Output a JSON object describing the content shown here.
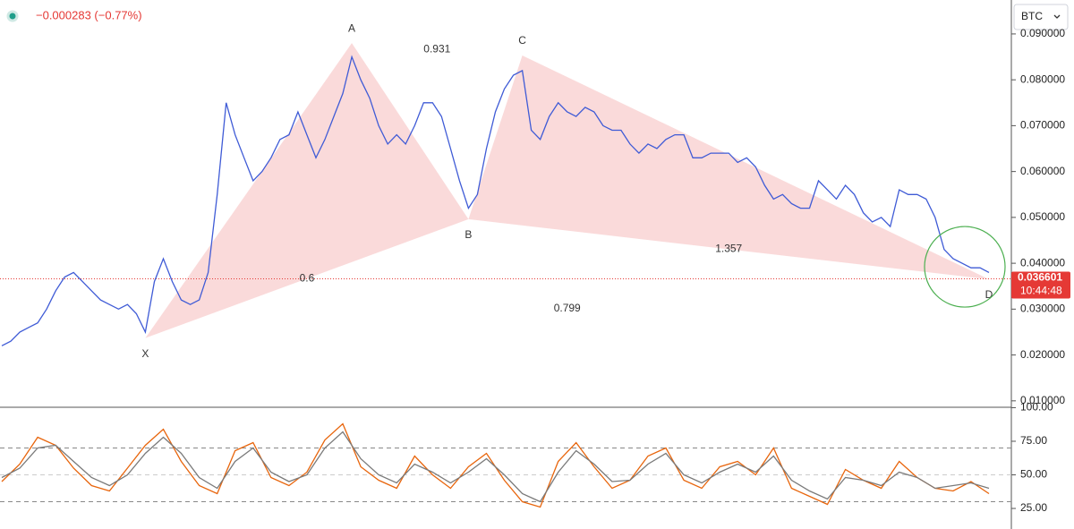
{
  "header": {
    "change": "−0.000283 (−0.77%)",
    "symbol": "BTC"
  },
  "chart_data": [
    {
      "type": "line",
      "series": [
        {
          "color": "#3f5bd6",
          "values": [
            0.022,
            0.023,
            0.025,
            0.026,
            0.027,
            0.03,
            0.034,
            0.037,
            0.038,
            0.036,
            0.034,
            0.032,
            0.031,
            0.03,
            0.031,
            0.029,
            0.025,
            0.036,
            0.041,
            0.036,
            0.032,
            0.031,
            0.032,
            0.038,
            0.055,
            0.075,
            0.068,
            0.063,
            0.058,
            0.06,
            0.063,
            0.067,
            0.068,
            0.073,
            0.068,
            0.063,
            0.067,
            0.072,
            0.077,
            0.085,
            0.08,
            0.076,
            0.07,
            0.066,
            0.068,
            0.066,
            0.07,
            0.075,
            0.075,
            0.072,
            0.065,
            0.058,
            0.052,
            0.055,
            0.065,
            0.073,
            0.078,
            0.081,
            0.082,
            0.069,
            0.067,
            0.072,
            0.075,
            0.073,
            0.072,
            0.074,
            0.073,
            0.07,
            0.069,
            0.069,
            0.066,
            0.064,
            0.066,
            0.065,
            0.067,
            0.068,
            0.068,
            0.063,
            0.063,
            0.064,
            0.064,
            0.064,
            0.062,
            0.063,
            0.061,
            0.057,
            0.054,
            0.055,
            0.053,
            0.052,
            0.052,
            0.058,
            0.056,
            0.054,
            0.057,
            0.055,
            0.051,
            0.049,
            0.05,
            0.048,
            0.056,
            0.055,
            0.055,
            0.054,
            0.05,
            0.043,
            0.041,
            0.04,
            0.039,
            0.039,
            0.038
          ]
        }
      ],
      "ylim": [
        0.0086,
        0.0974
      ],
      "yticks": [
        {
          "value": 0.01,
          "label": "0.010000"
        },
        {
          "value": 0.02,
          "label": "0.020000"
        },
        {
          "value": 0.03,
          "label": "0.030000"
        },
        {
          "value": 0.04,
          "label": "0.040000"
        },
        {
          "value": 0.05,
          "label": "0.050000"
        },
        {
          "value": 0.06,
          "label": "0.060000"
        },
        {
          "value": 0.07,
          "label": "0.070000"
        },
        {
          "value": 0.08,
          "label": "0.080000"
        },
        {
          "value": 0.09,
          "label": "0.090000"
        }
      ],
      "last_price": {
        "value": 0.036601,
        "label": "0.036601"
      },
      "countdown": "10:44:48",
      "pattern": {
        "color": "#f9d4d4",
        "points": [
          {
            "label": "X",
            "x": 16,
            "y": 0.0237
          },
          {
            "label": "A",
            "x": 39,
            "y": 0.088
          },
          {
            "label": "B",
            "x": 52,
            "y": 0.0496
          },
          {
            "label": "C",
            "x": 58,
            "y": 0.0853
          },
          {
            "label": "D",
            "x": 110,
            "y": 0.0365
          }
        ],
        "ratios": [
          "0.6",
          "0.931",
          "0.799",
          "1.357"
        ]
      },
      "highlight_color": "#4caf50"
    },
    {
      "type": "line",
      "series": [
        {
          "color": "#e8650c",
          "values": [
            45,
            58,
            78,
            72,
            55,
            42,
            38,
            55,
            72,
            84,
            60,
            42,
            36,
            68,
            74,
            48,
            42,
            52,
            76,
            88,
            56,
            46,
            40,
            64,
            50,
            40,
            56,
            66,
            46,
            30,
            26,
            60,
            74,
            56,
            40,
            46,
            64,
            70,
            46,
            40,
            56,
            60,
            50,
            70,
            40,
            34,
            28,
            54,
            46,
            40,
            60,
            48,
            40,
            38,
            45,
            36
          ]
        },
        {
          "color": "#7a7a7a",
          "values": [
            48,
            55,
            70,
            72,
            60,
            48,
            42,
            50,
            66,
            78,
            66,
            48,
            40,
            60,
            70,
            52,
            45,
            50,
            70,
            82,
            62,
            50,
            44,
            58,
            52,
            44,
            52,
            62,
            50,
            36,
            30,
            52,
            68,
            58,
            45,
            46,
            58,
            66,
            50,
            44,
            52,
            58,
            52,
            64,
            46,
            38,
            32,
            48,
            46,
            42,
            52,
            48,
            40,
            42,
            44,
            40
          ]
        }
      ],
      "ylim": [
        9.7,
        100.3
      ],
      "yticks": [
        {
          "value": 25,
          "label": "25.00"
        },
        {
          "value": 50,
          "label": "50.00"
        },
        {
          "value": 75,
          "label": "75.00"
        },
        {
          "value": 100,
          "label": "100.00"
        }
      ],
      "bands": [
        70,
        50,
        30
      ]
    }
  ]
}
